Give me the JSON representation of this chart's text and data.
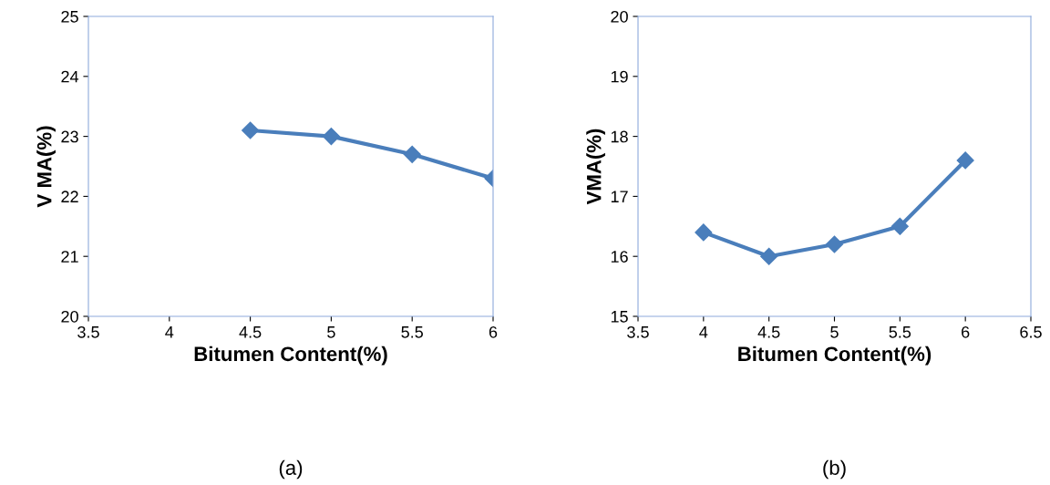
{
  "chart_data": [
    {
      "type": "line",
      "xlabel": "Bitumen Content(%)",
      "ylabel": "V MA(%)",
      "x": [
        4.5,
        5,
        5.5,
        6
      ],
      "series": [
        {
          "color": "#4a7ebb",
          "values": [
            23.1,
            23.0,
            22.7,
            22.3
          ]
        }
      ],
      "xlim": [
        3.5,
        6
      ],
      "xticks": [
        3.5,
        4,
        4.5,
        5,
        5.5,
        6
      ],
      "ylim": [
        20,
        25
      ],
      "yticks": [
        20,
        21,
        22,
        23,
        24,
        25
      ],
      "marker": "diamond",
      "line_style": "solid",
      "grid": false,
      "legend": false,
      "annotations": [
        "(a)"
      ]
    },
    {
      "type": "line",
      "xlabel": "Bitumen Content(%)",
      "ylabel": "VMA(%)",
      "x": [
        4,
        4.5,
        5,
        5.5,
        6
      ],
      "series": [
        {
          "color": "#4a7ebb",
          "values": [
            16.4,
            16.0,
            16.2,
            16.5,
            17.6
          ]
        }
      ],
      "xlim": [
        3.5,
        6.5
      ],
      "xticks": [
        3.5,
        4,
        4.5,
        5,
        5.5,
        6,
        6.5
      ],
      "ylim": [
        15,
        20
      ],
      "yticks": [
        15,
        16,
        17,
        18,
        19,
        20
      ],
      "marker": "diamond",
      "line_style": "solid",
      "grid": false,
      "legend": false,
      "annotations": [
        "(b)"
      ]
    }
  ]
}
